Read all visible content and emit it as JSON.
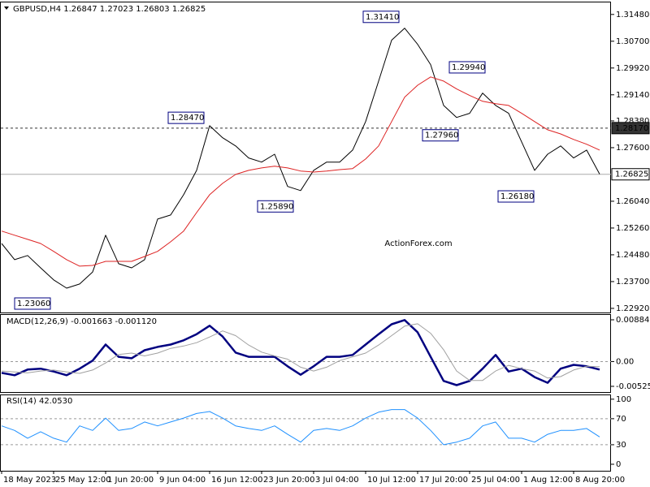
{
  "chart_data": [
    {
      "type": "line",
      "title": "GBPUSD,H4 1.26847 1.27023 1.26803 1.26825",
      "watermark": "ActionForex.com",
      "ylim": [
        1.228,
        1.3183
      ],
      "yticks": [
        {
          "value": 1.3148,
          "label": "1.31480"
        },
        {
          "value": 1.307,
          "label": "1.30700"
        },
        {
          "value": 1.2992,
          "label": "1.29920"
        },
        {
          "value": 1.2914,
          "label": "1.29140"
        },
        {
          "value": 1.2838,
          "label": "1.28380"
        },
        {
          "value": 1.276,
          "label": "1.27600"
        },
        {
          "value": 1.2604,
          "label": "1.26040"
        },
        {
          "value": 1.2526,
          "label": "1.25260"
        },
        {
          "value": 1.2448,
          "label": "1.24480"
        },
        {
          "value": 1.237,
          "label": "1.23700"
        },
        {
          "value": 1.2292,
          "label": "1.22920"
        }
      ],
      "series": [
        {
          "color": "#000000",
          "values": [
            1.2481,
            1.2434,
            1.2446,
            1.241,
            1.2375,
            1.2351,
            1.2363,
            1.2398,
            1.2505,
            1.2422,
            1.241,
            1.2434,
            1.2552,
            1.2564,
            1.2623,
            1.2694,
            1.2824,
            1.2789,
            1.2765,
            1.273,
            1.2718,
            1.2741,
            1.2647,
            1.2635,
            1.2694,
            1.2718,
            1.2718,
            1.2753,
            1.2836,
            1.2954,
            1.3073,
            1.3108,
            1.3061,
            1.3002,
            1.2883,
            1.2848,
            1.286,
            1.2919,
            1.2883,
            1.286,
            1.2777,
            1.2694,
            1.2741,
            1.2765,
            1.273,
            1.2753,
            1.2683
          ]
        },
        {
          "color": "#dd2222",
          "values": [
            1.2517,
            1.2505,
            1.2493,
            1.2481,
            1.2458,
            1.2434,
            1.2415,
            1.2417,
            1.2429,
            1.2429,
            1.2429,
            1.2443,
            1.2458,
            1.2486,
            1.2517,
            1.2571,
            1.2623,
            1.2656,
            1.2682,
            1.2694,
            1.2701,
            1.2706,
            1.2701,
            1.2692,
            1.2689,
            1.2692,
            1.2696,
            1.2699,
            1.2727,
            1.2765,
            1.2836,
            1.2907,
            1.2942,
            1.2966,
            1.2954,
            1.2931,
            1.2912,
            1.2895,
            1.2888,
            1.2883,
            1.286,
            1.2836,
            1.2812,
            1.28,
            1.2784,
            1.277,
            1.2753
          ]
        }
      ],
      "levels": [
        {
          "value": 1.2817,
          "label": "1.28170",
          "style": "dashed"
        },
        {
          "value": 1.26825,
          "label": "1.26825",
          "style": "solid"
        }
      ],
      "annotations": [
        {
          "value": 1.3141,
          "label": "1.31410"
        },
        {
          "value": 1.2994,
          "label": "1.29940"
        },
        {
          "value": 1.2847,
          "label": "1.28470"
        },
        {
          "value": 1.2796,
          "label": "1.27960"
        },
        {
          "value": 1.2589,
          "label": "1.25890"
        },
        {
          "value": 1.2618,
          "label": "1.26180"
        },
        {
          "value": 1.2306,
          "label": "1.23060"
        }
      ]
    },
    {
      "type": "line",
      "title": "MACD(12,26,9) -0.001663 -0.001120",
      "ylim": [
        -0.00646,
        0.00988
      ],
      "yticks": [
        0.008846,
        {
          "value": 0,
          "label": "0.00"
        },
        -0.005252
      ],
      "levels": [
        0
      ],
      "series": [
        {
          "color": "#000080",
          "values": [
            -0.0024,
            -0.0029,
            -0.0017,
            -0.0015,
            -0.0021,
            -0.0029,
            -0.0015,
            0.0002,
            0.0036,
            0.001,
            0.0007,
            0.0024,
            0.0031,
            0.0036,
            0.0045,
            0.0058,
            0.0076,
            0.0053,
            0.0019,
            0.001,
            0.001,
            0.001,
            -0.001,
            -0.0028,
            -0.001,
            0.001,
            0.001,
            0.0014,
            0.0036,
            0.0058,
            0.0079,
            0.0088,
            0.0062,
            0.001,
            -0.0041,
            -0.005,
            -0.0041,
            -0.0015,
            0.0014,
            -0.0021,
            -0.0015,
            -0.0033,
            -0.0045,
            -0.0015,
            -0.0007,
            -0.001,
            -0.0017
          ]
        },
        {
          "color": "#a0a0a0",
          "values": [
            -0.002,
            -0.0022,
            -0.0024,
            -0.002,
            -0.0018,
            -0.0022,
            -0.0025,
            -0.0018,
            -0.0003,
            0.0015,
            0.0018,
            0.0012,
            0.0018,
            0.0028,
            0.0033,
            0.004,
            0.0052,
            0.0065,
            0.0055,
            0.0035,
            0.002,
            0.0012,
            0.0005,
            -0.0012,
            -0.002,
            -0.0012,
            0.0002,
            0.001,
            0.0018,
            0.0035,
            0.0055,
            0.0075,
            0.008,
            0.006,
            0.0025,
            -0.002,
            -0.004,
            -0.004,
            -0.002,
            -0.0008,
            -0.0015,
            -0.002,
            -0.0035,
            -0.0032,
            -0.0018,
            -0.001,
            -0.0011
          ]
        }
      ]
    },
    {
      "type": "line",
      "title": "RSI(14) 42.0530",
      "ylim": [
        -10,
        106
      ],
      "yticks": [
        100,
        70,
        30,
        0
      ],
      "levels": [
        70,
        30
      ],
      "categories": [
        "18 May 2023",
        null,
        null,
        null,
        "25 May 12:00",
        null,
        null,
        null,
        "1 Jun 20:00",
        null,
        null,
        null,
        "9 Jun 04:00",
        null,
        null,
        null,
        "16 Jun 12:00",
        null,
        null,
        null,
        "23 Jun 20:00",
        null,
        null,
        null,
        "3 Jul 04:00",
        null,
        null,
        null,
        "10 Jul 12:00",
        null,
        null,
        null,
        "17 Jul 20:00",
        null,
        null,
        null,
        "25 Jul 04:00",
        null,
        null,
        null,
        "1 Aug 12:00",
        null,
        null,
        null,
        "8 Aug 20:00",
        null,
        null
      ],
      "series": [
        {
          "color": "#1e90ff",
          "values": [
            59,
            52,
            40,
            50,
            40,
            34,
            59,
            52,
            71,
            52,
            55,
            65,
            59,
            65,
            71,
            78,
            81,
            71,
            59,
            55,
            52,
            59,
            46,
            34,
            52,
            55,
            52,
            59,
            71,
            80,
            84,
            84,
            71,
            52,
            30,
            34,
            40,
            59,
            65,
            40,
            40,
            34,
            46,
            52,
            52,
            55,
            42
          ]
        }
      ]
    }
  ]
}
